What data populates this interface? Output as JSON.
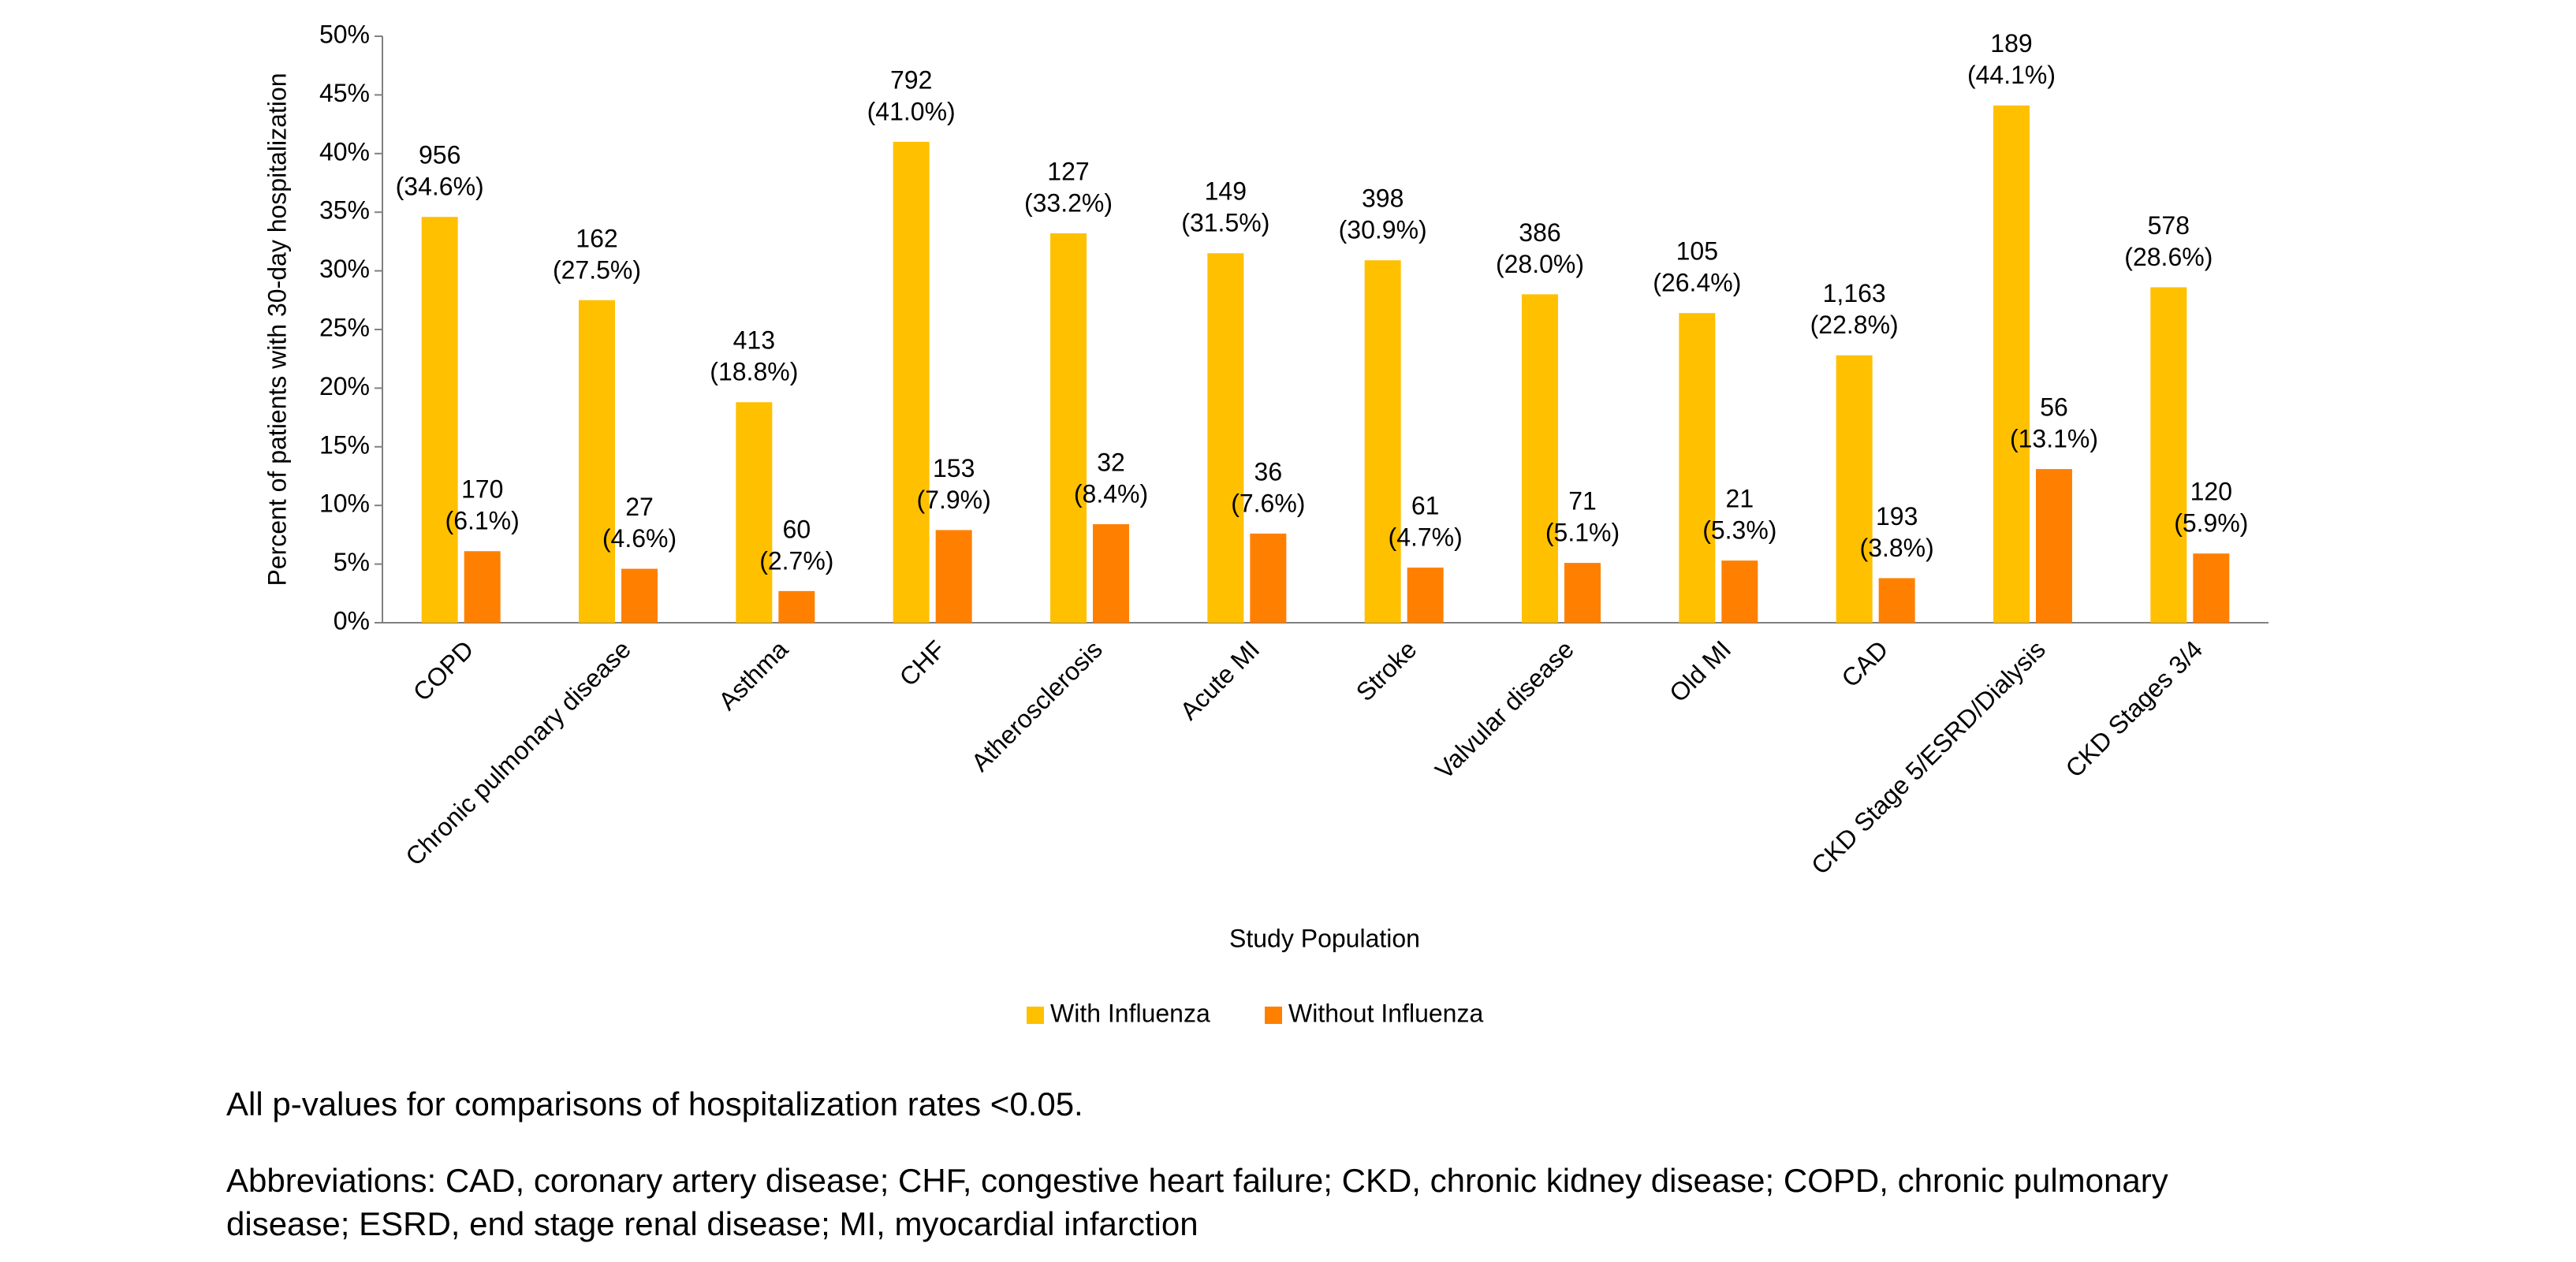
{
  "chart_data": {
    "type": "grouped_bar",
    "x_label": "Study Population",
    "y_label": "Percent of patients with 30-day hospitalization",
    "categories": [
      "COPD",
      "Chronic pulmonary disease",
      "Asthma",
      "CHF",
      "Atherosclerosis",
      "Acute MI",
      "Stroke",
      "Valvular disease",
      "Old MI",
      "CAD",
      "CKD Stage 5/ESRD/Dialysis",
      "CKD Stages 3/4"
    ],
    "series": [
      {
        "name": "With Influenza",
        "color": "#FFC000",
        "values": [
          34.6,
          27.5,
          18.8,
          41.0,
          33.2,
          31.5,
          30.9,
          28.0,
          26.4,
          22.8,
          44.1,
          28.6
        ],
        "value_labels": [
          "(34.6%)",
          "(27.5%)",
          "(18.8%)",
          "(41.0%)",
          "(33.2%)",
          "(31.5%)",
          "(30.9%)",
          "(28.0%)",
          "(26.4%)",
          "(22.8%)",
          "(44.1%)",
          "(28.6%)"
        ],
        "count_labels": [
          "956",
          "162",
          "413",
          "792",
          "127",
          "149",
          "398",
          "386",
          "105",
          "1,163",
          "189",
          "578"
        ]
      },
      {
        "name": "Without Influenza",
        "color": "#FF8000",
        "values": [
          6.1,
          4.6,
          2.7,
          7.9,
          8.4,
          7.6,
          4.7,
          5.1,
          5.3,
          3.8,
          13.1,
          5.9
        ],
        "value_labels": [
          "(6.1%)",
          "(4.6%)",
          "(2.7%)",
          "(7.9%)",
          "(8.4%)",
          "(7.6%)",
          "(4.7%)",
          "(5.1%)",
          "(5.3%)",
          "(3.8%)",
          "(13.1%)",
          "(5.9%)"
        ],
        "count_labels": [
          "170",
          "27",
          "60",
          "153",
          "32",
          "36",
          "61",
          "71",
          "21",
          "193",
          "56",
          "120"
        ]
      }
    ],
    "ylim": [
      0,
      50
    ],
    "yticks": [
      {
        "value": 0,
        "label": "0%"
      },
      {
        "value": 5,
        "label": "5%"
      },
      {
        "value": 10,
        "label": "10%"
      },
      {
        "value": 15,
        "label": "15%"
      },
      {
        "value": 20,
        "label": "20%"
      },
      {
        "value": 25,
        "label": "25%"
      },
      {
        "value": 30,
        "label": "30%"
      },
      {
        "value": 35,
        "label": "35%"
      },
      {
        "value": 40,
        "label": "40%"
      },
      {
        "value": 45,
        "label": "45%"
      },
      {
        "value": 50,
        "label": "50%"
      }
    ],
    "grid": false,
    "legend": "bottom"
  },
  "notes": [
    "All p-values for comparisons of hospitalization rates <0.05.",
    "Abbreviations: CAD, coronary artery disease; CHF, congestive heart failure; CKD, chronic kidney disease; COPD, chronic pulmonary",
    "disease; ESRD, end stage renal disease; MI, myocardial infarction"
  ]
}
